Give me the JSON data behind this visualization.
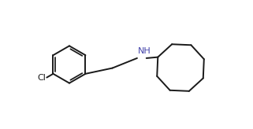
{
  "background_color": "#ffffff",
  "line_color": "#1a1a1a",
  "nh_color": "#4444aa",
  "cl_color": "#1a1a1a",
  "line_width": 1.4,
  "font_size_nh": 8,
  "font_size_cl": 8,
  "bx": 2.3,
  "by": 3.0,
  "br": 0.88,
  "cox": 7.55,
  "coy": 2.85,
  "cor": 1.18
}
